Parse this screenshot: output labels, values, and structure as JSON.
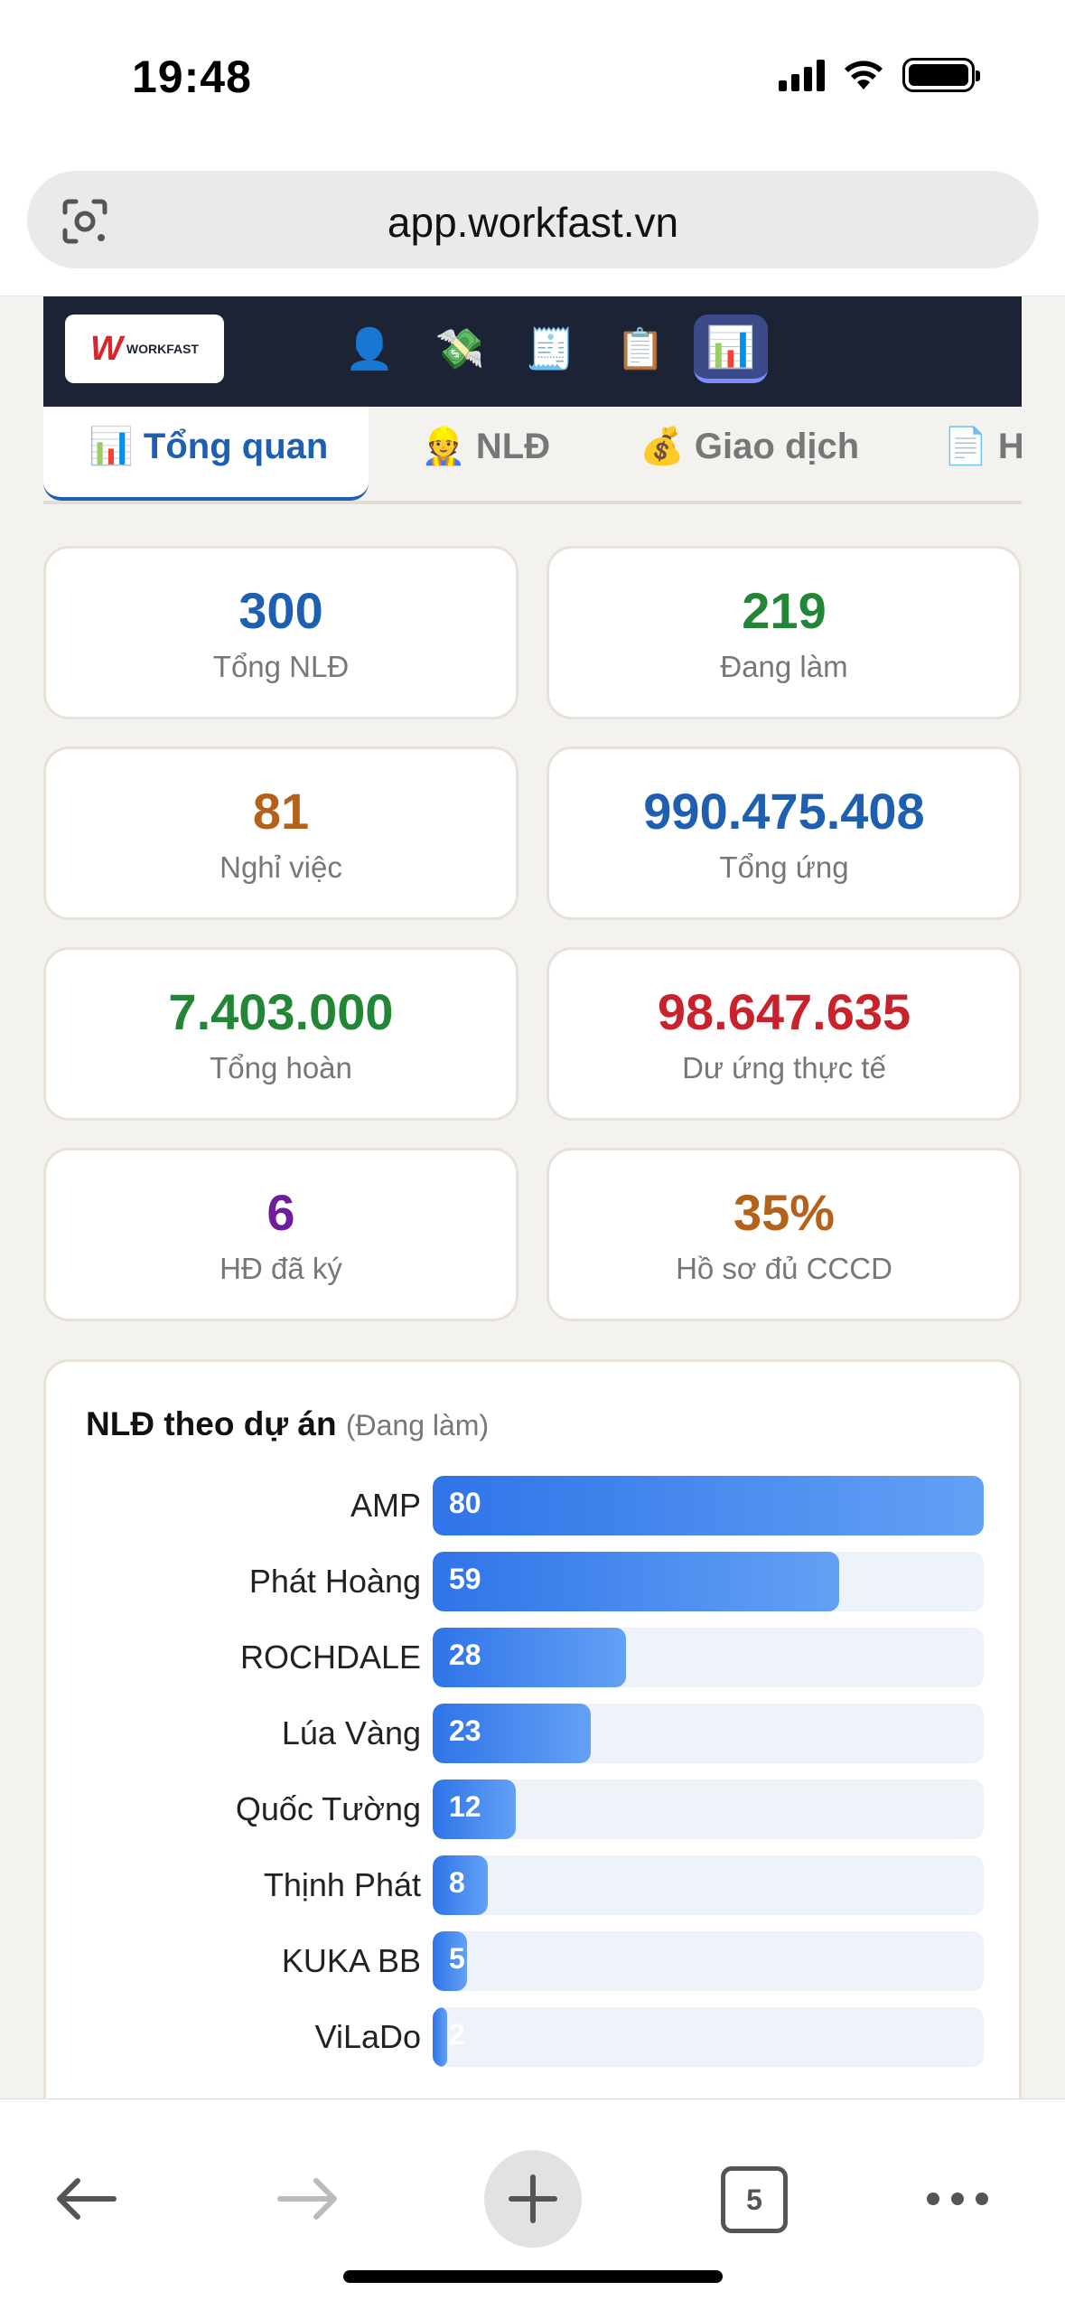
{
  "status_bar": {
    "time": "19:48"
  },
  "browser": {
    "url": "app.workfast.vn",
    "open_tabs": "5"
  },
  "header": {
    "logo": {
      "mark": "W",
      "text": "WORKFAST"
    },
    "nav_icons": [
      "👤",
      "💸",
      "🧾",
      "📋",
      "📊"
    ]
  },
  "tabs": [
    {
      "label": "📊 Tổng quan"
    },
    {
      "label": "👷 NLĐ"
    },
    {
      "label": "💰 Giao dịch"
    },
    {
      "label": "📄 H"
    }
  ],
  "stats": [
    {
      "value": "300",
      "label": "Tổng NLĐ",
      "color": "#1f5fb0"
    },
    {
      "value": "219",
      "label": "Đang làm",
      "color": "#238636"
    },
    {
      "value": "81",
      "label": "Nghỉ việc",
      "color": "#b4621a"
    },
    {
      "value": "990.475.408",
      "label": "Tổng ứng",
      "color": "#1f5fb0"
    },
    {
      "value": "7.403.000",
      "label": "Tổng hoàn",
      "color": "#238636"
    },
    {
      "value": "98.647.635",
      "label": "Dư ứng thực tế",
      "color": "#c8232c"
    },
    {
      "value": "6",
      "label": "HĐ đã ký",
      "color": "#6f1d9a"
    },
    {
      "value": "35%",
      "label": "Hồ sơ đủ CCCD",
      "color": "#b4621a"
    }
  ],
  "project_panel": {
    "title": "NLĐ theo dự án",
    "subtitle": "(Đang làm)"
  },
  "chart_data": {
    "type": "bar",
    "orientation": "horizontal",
    "categories": [
      "AMP",
      "Phát Hoàng",
      "ROCHDALE",
      "Lúa Vàng",
      "Quốc Tường",
      "Thịnh Phát",
      "KUKA BB",
      "ViLaDo"
    ],
    "values": [
      80,
      59,
      28,
      23,
      12,
      8,
      5,
      2
    ],
    "xlim": [
      0,
      80
    ]
  }
}
